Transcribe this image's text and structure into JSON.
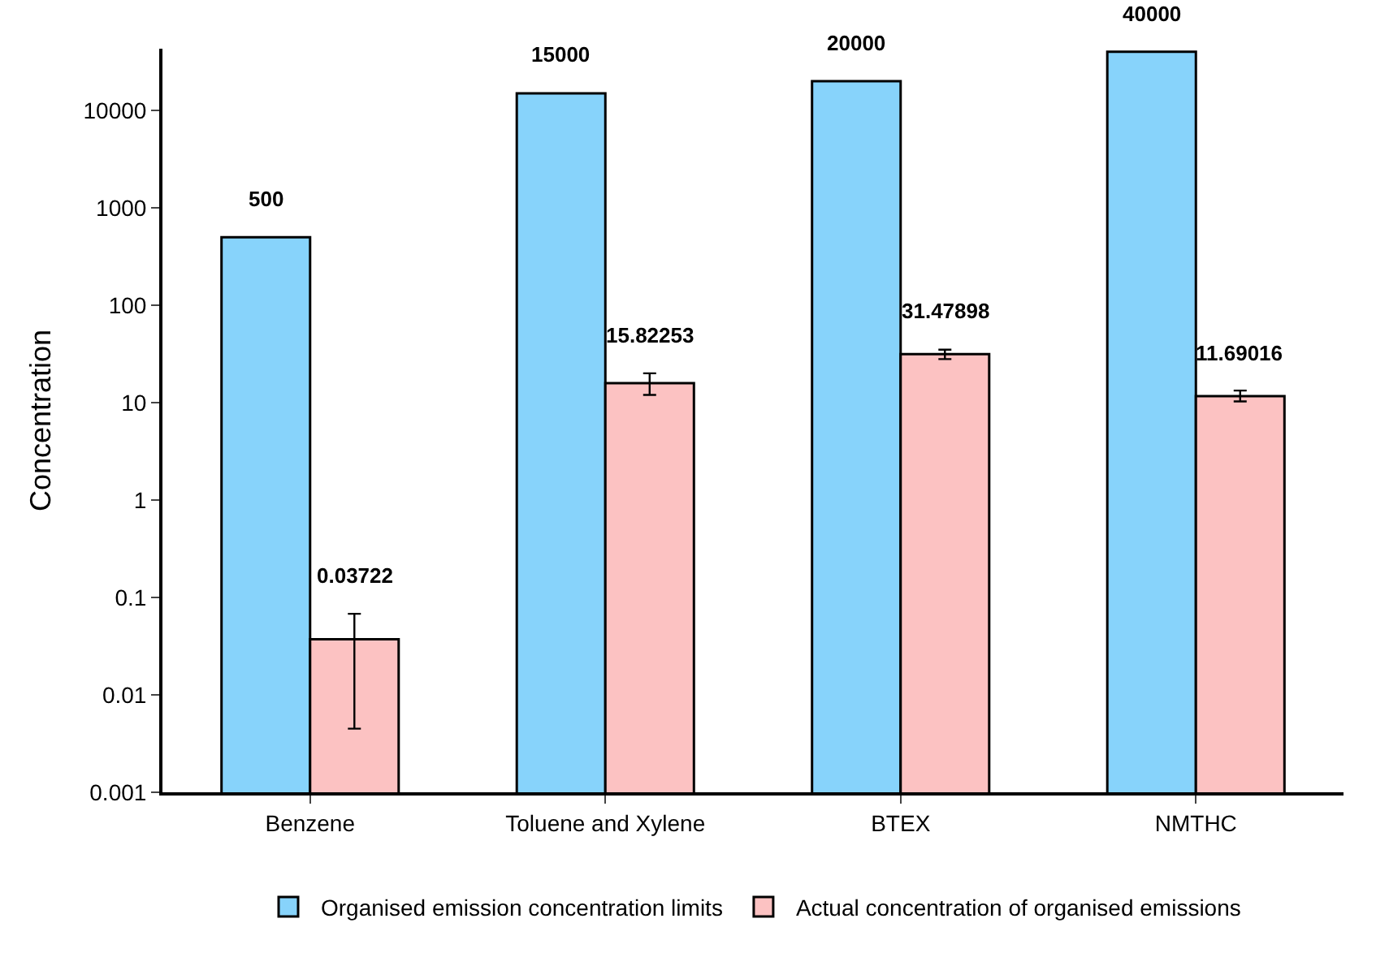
{
  "chart_data": {
    "type": "bar",
    "ylabel": "Concentration",
    "categories": [
      "Benzene",
      "Toluene and Xylene",
      "BTEX",
      "NMTHC"
    ],
    "series": [
      {
        "name": "Organised emission concentration limits",
        "color": "#87d3fb",
        "values": [
          500,
          15000,
          20000,
          40000
        ]
      },
      {
        "name": "Actual concentration of organised emissions",
        "color": "#fcc2c2",
        "values": [
          0.03722,
          15.82253,
          31.47898,
          11.69016
        ],
        "errors": [
          [
            0.0045,
            0.068
          ],
          [
            12,
            20
          ],
          [
            28,
            35
          ],
          [
            10.3,
            13.3
          ]
        ]
      }
    ],
    "log": true,
    "ylim": [
      0.001,
      43000
    ],
    "yticks": [
      0.001,
      0.01,
      0.1,
      1,
      10,
      100,
      1000,
      10000
    ],
    "data_labels": true,
    "legend": "bottom"
  }
}
